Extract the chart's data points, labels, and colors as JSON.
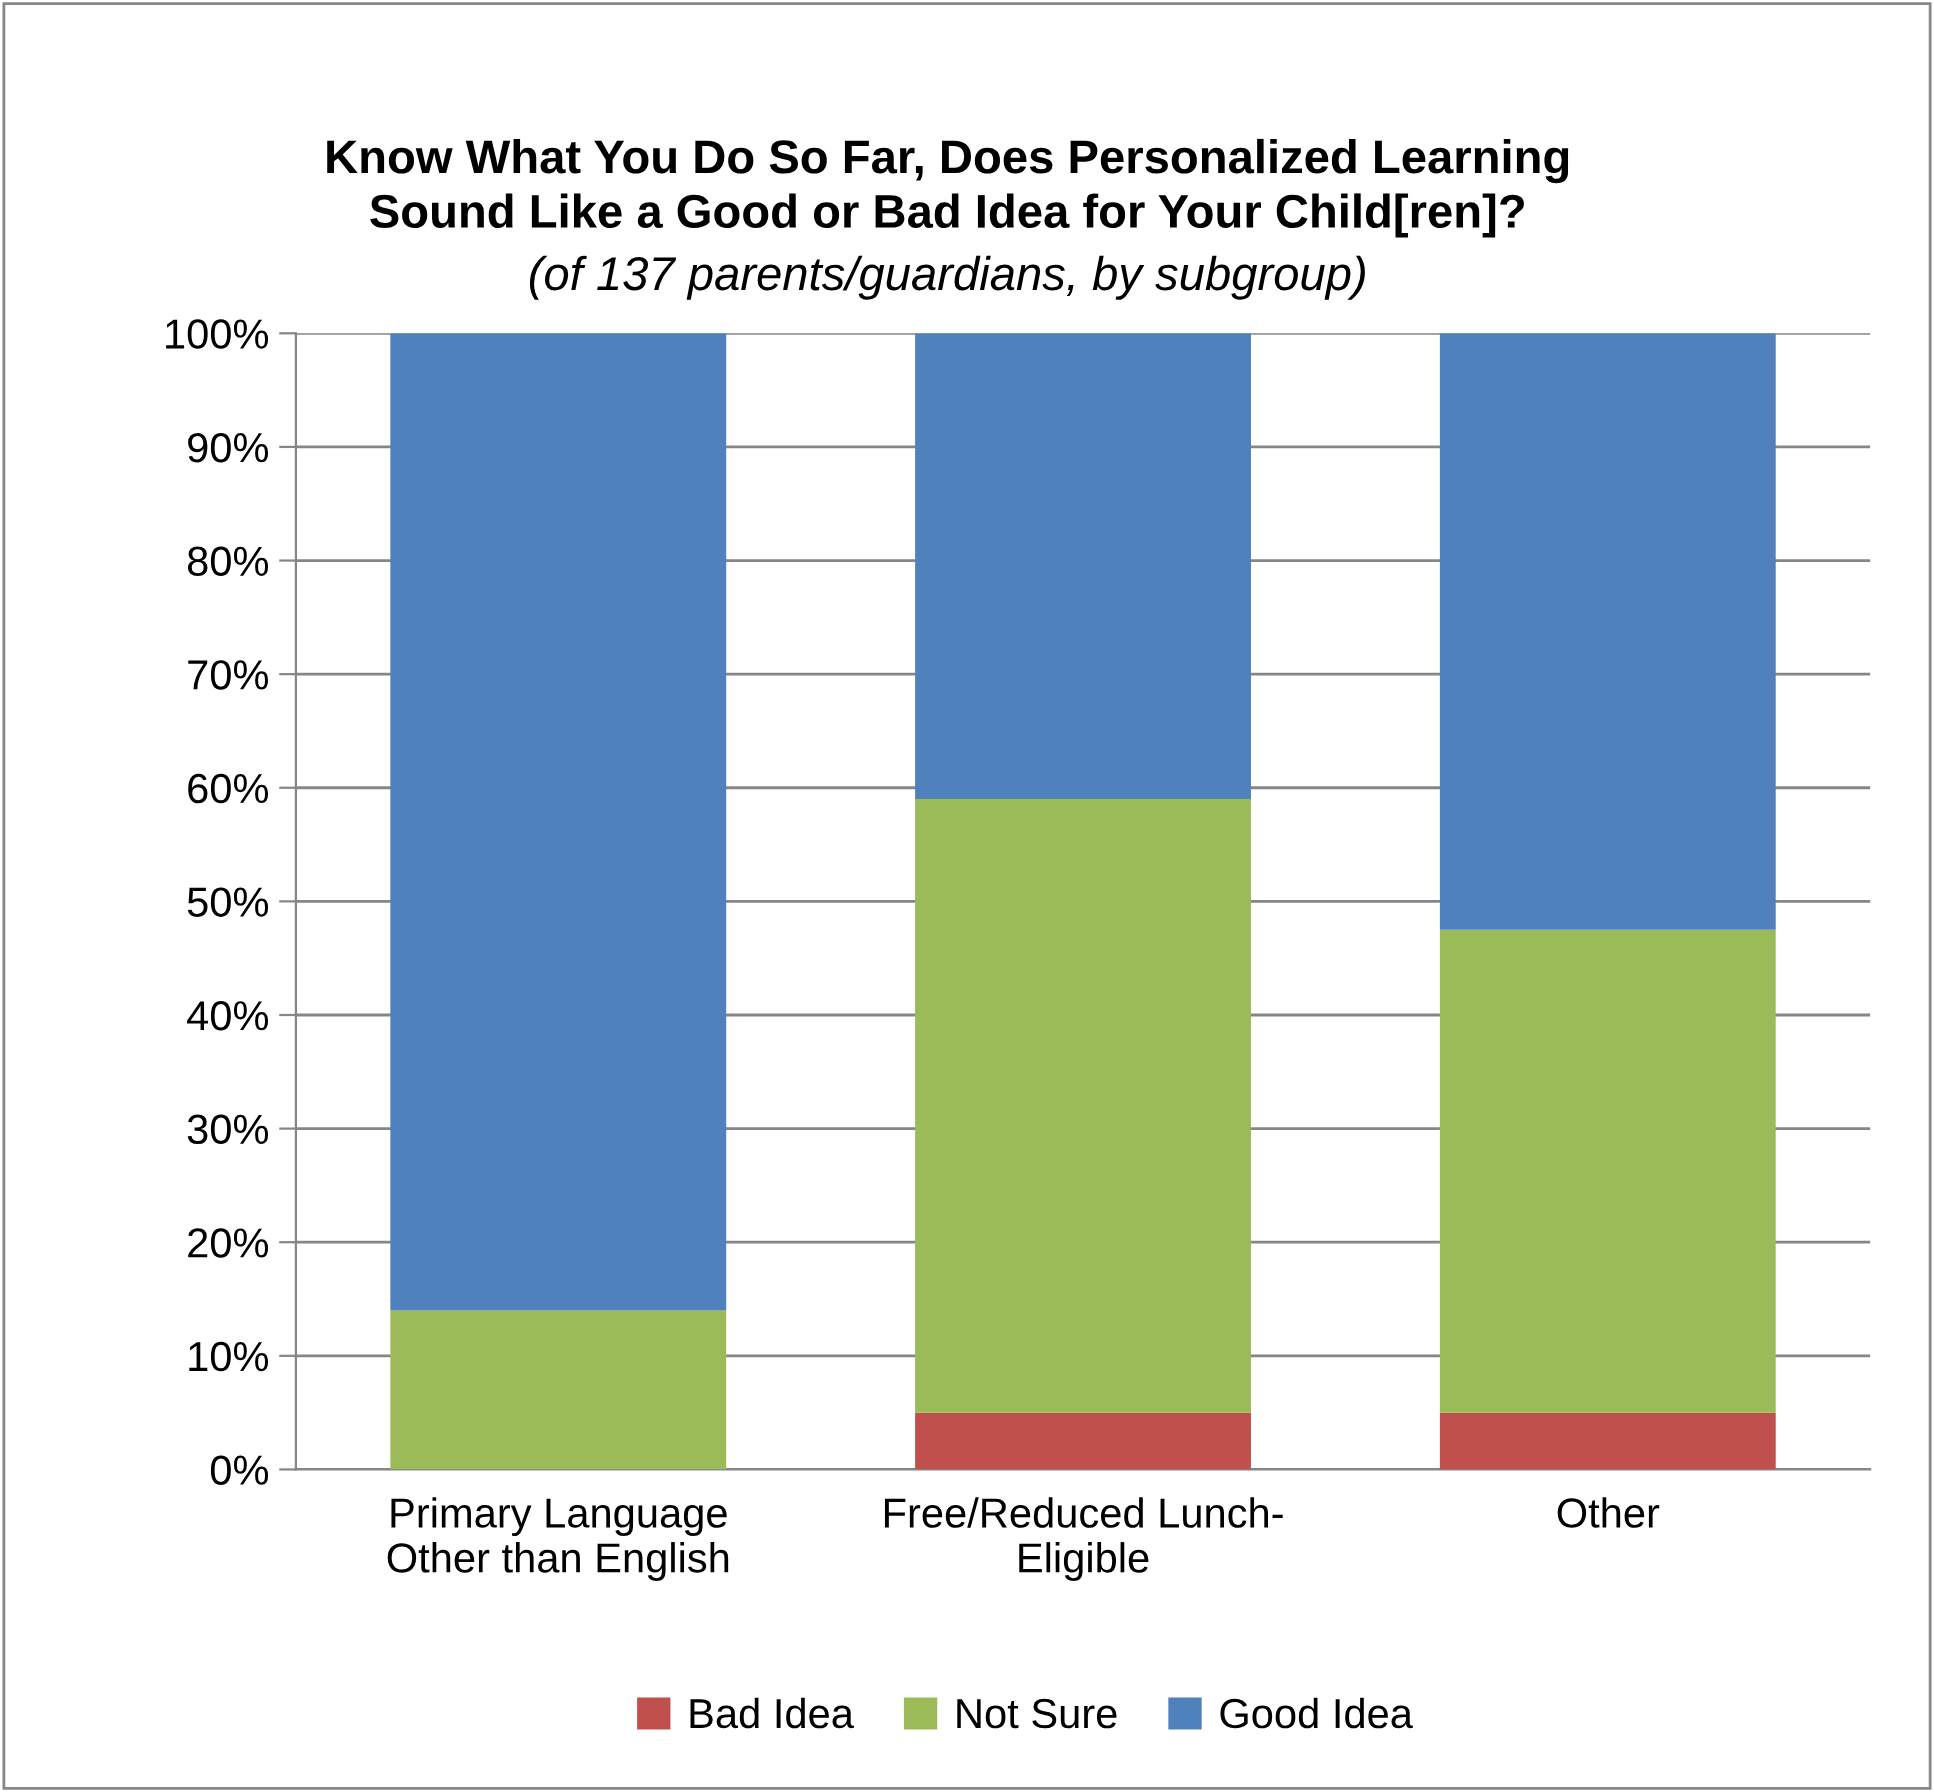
{
  "chart_data": {
    "type": "bar",
    "stacked": true,
    "title": "Know What You Do So Far, Does Personalized Learning\nSound Like a Good or Bad Idea for Your Child[ren]?",
    "subtitle": "(of 137 parents/guardians, by subgroup)",
    "categories": [
      "Primary Language\nOther than English",
      "Free/Reduced Lunch-\nEligible",
      "Other"
    ],
    "series": [
      {
        "name": "Bad Idea",
        "color": "#c0504d",
        "values": [
          0,
          5,
          5
        ]
      },
      {
        "name": "Not Sure",
        "color": "#9bbb59",
        "values": [
          14,
          54,
          42.5
        ]
      },
      {
        "name": "Good Idea",
        "color": "#4f81bd",
        "values": [
          86,
          41,
          52.5
        ]
      }
    ],
    "ylim": [
      0,
      100
    ],
    "yticks": [
      {
        "value": 0,
        "label": "0%"
      },
      {
        "value": 10,
        "label": "10%"
      },
      {
        "value": 20,
        "label": "20%"
      },
      {
        "value": 30,
        "label": "30%"
      },
      {
        "value": 40,
        "label": "40%"
      },
      {
        "value": 50,
        "label": "50%"
      },
      {
        "value": 60,
        "label": "60%"
      },
      {
        "value": 70,
        "label": "70%"
      },
      {
        "value": 80,
        "label": "80%"
      },
      {
        "value": 90,
        "label": "90%"
      },
      {
        "value": 100,
        "label": "100%"
      }
    ],
    "grid": "y",
    "legend": "bottom"
  }
}
